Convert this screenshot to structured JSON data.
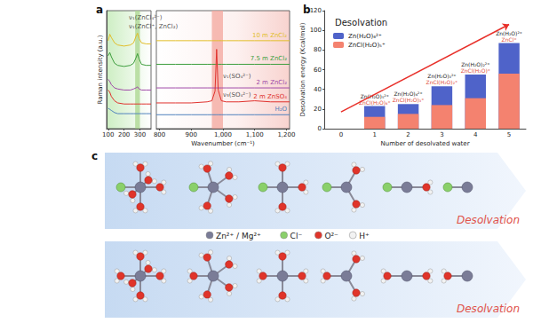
{
  "chart_data": [
    {
      "type": "line",
      "title": "a",
      "x_label": "Wavenumber (cm⁻¹)",
      "y_label": "Raman intensity (a.u.)",
      "x_segments": [
        {
          "xlim": [
            90,
            370
          ],
          "xticks": [
            100,
            200,
            300
          ]
        },
        {
          "xlim": [
            790,
            1210
          ],
          "xticks": [
            800,
            900,
            1000,
            1100,
            1200
          ]
        }
      ],
      "ylim": [
        0,
        11
      ],
      "tick_labels": "x",
      "grid": false,
      "x": [
        100,
        110,
        120,
        140,
        160,
        200,
        240,
        260,
        275,
        285,
        295,
        310,
        340,
        370,
        790,
        850,
        900,
        950,
        965,
        975,
        980,
        985,
        995,
        1010,
        1050,
        1100,
        1150,
        1210
      ],
      "series": [
        {
          "name": "10 m ZnCl₂",
          "color": "#e2be2a",
          "values": [
            8.2,
            8.8,
            8.5,
            8.0,
            7.8,
            7.7,
            7.8,
            8.0,
            8.6,
            8.9,
            8.4,
            8.0,
            7.9,
            7.9,
            8.2,
            8.2,
            8.2,
            8.2,
            8.2,
            8.2,
            8.2,
            8.2,
            8.2,
            8.2,
            8.2,
            8.2,
            8.2,
            8.2
          ]
        },
        {
          "name": "7.5 m ZnCl₂",
          "color": "#3e9e3e",
          "values": [
            6.8,
            7.1,
            6.7,
            6.1,
            5.9,
            5.8,
            5.9,
            6.1,
            6.6,
            7.0,
            6.5,
            6.0,
            5.9,
            5.9,
            6.0,
            6.0,
            6.0,
            6.0,
            6.0,
            6.0,
            6.0,
            6.0,
            6.0,
            6.0,
            6.0,
            6.0,
            6.0,
            6.0
          ]
        },
        {
          "name": "2 m ZnCl₂",
          "color": "#a04aa8",
          "values": [
            4.6,
            4.4,
            4.1,
            3.8,
            3.7,
            3.6,
            3.6,
            3.7,
            3.8,
            3.9,
            3.7,
            3.6,
            3.6,
            3.6,
            3.8,
            3.8,
            3.8,
            3.8,
            3.8,
            3.8,
            3.8,
            3.8,
            3.8,
            3.8,
            3.8,
            3.8,
            3.8,
            3.8
          ]
        },
        {
          "name": "2 m ZnSO₄",
          "color": "#e0322e",
          "values": [
            3.6,
            3.4,
            3.0,
            2.6,
            2.4,
            2.3,
            2.3,
            2.3,
            2.3,
            2.3,
            2.3,
            2.3,
            2.3,
            2.3,
            2.4,
            2.4,
            2.4,
            2.5,
            2.6,
            3.5,
            7.4,
            3.6,
            2.6,
            2.5,
            2.5,
            2.6,
            2.5,
            2.5
          ]
        },
        {
          "name": "H₂O",
          "color": "#4f81bd",
          "values": [
            1.9,
            1.8,
            1.7,
            1.5,
            1.4,
            1.4,
            1.4,
            1.4,
            1.4,
            1.4,
            1.4,
            1.4,
            1.4,
            1.4,
            1.3,
            1.3,
            1.3,
            1.3,
            1.3,
            1.3,
            1.3,
            1.3,
            1.3,
            1.3,
            1.3,
            1.3,
            1.3,
            1.3
          ]
        }
      ],
      "highlights": [
        {
          "from": 270,
          "to": 300,
          "color": "#a9d58e"
        },
        {
          "from": 965,
          "to": 1000,
          "color": "#f3a59c"
        }
      ],
      "annotations": [
        {
          "text": "ν₁(ZnCl₄²⁻)",
          "x": 230,
          "y": 10.3
        },
        {
          "text": "ν₁(ZnCl⁺, ZnCl₂)",
          "x": 230,
          "y": 9.55
        },
        {
          "text": "ν₁(SO₄²⁻)",
          "x": 1000,
          "y": 4.9
        },
        {
          "text": "ν₃(SO₄²⁻)",
          "x": 1000,
          "y": 3.15
        }
      ]
    },
    {
      "type": "bar",
      "title": "b",
      "x_label": "Number of desolvated water",
      "y_label": "Desolvation energy (Kcal/mol)",
      "text": "Desolvation",
      "categories": [
        "0",
        "1",
        "2",
        "3",
        "4",
        "5"
      ],
      "ylim": [
        0,
        120
      ],
      "yticks": [
        0,
        20,
        40,
        60,
        80,
        100,
        120
      ],
      "grid": false,
      "legend": "upper left",
      "series": [
        {
          "name": "Zn(H₂O)₆²⁺",
          "color": "#4f63c9",
          "values": [
            null,
            23,
            25,
            43,
            55,
            87
          ]
        },
        {
          "name": "ZnCl(H₂O)₅⁺",
          "color": "#f4826f",
          "values": [
            null,
            12,
            15,
            24,
            31,
            56
          ]
        }
      ],
      "bar_annotations": [
        {
          "category": "1",
          "lines": [
            "Zn(H₂O)₅²⁺",
            "ZnCl(H₂O)₄⁺"
          ]
        },
        {
          "category": "2",
          "lines": [
            "Zn(H₂O)₄²⁺",
            "ZnCl(H₂O)₃⁺"
          ]
        },
        {
          "category": "3",
          "lines": [
            "Zn(H₂O)₃²⁺",
            "ZnCl(H₂O)₂⁺"
          ]
        },
        {
          "category": "4",
          "lines": [
            "Zn(H₂O)₂²⁺",
            "ZnCl(H₂O)⁺"
          ]
        },
        {
          "category": "5",
          "lines": [
            "Zn(H₂O)²⁺",
            "ZnCl⁺"
          ]
        }
      ],
      "arrow": {
        "from": [
          0,
          17
        ],
        "to": [
          5,
          106
        ],
        "color": "#e8302a"
      }
    }
  ],
  "diagram": {
    "title": "c",
    "legend": [
      {
        "label": "Zn²⁺ / Mg²⁺",
        "color": "#7a7c97"
      },
      {
        "label": "Cl⁻",
        "color": "#8ad06a"
      },
      {
        "label": "O²⁻",
        "color": "#e0342a"
      },
      {
        "label": "H⁺",
        "color": "#f2f2f2"
      }
    ],
    "rows": [
      {
        "label": "Desolvation",
        "structures": [
          {
            "water": 5,
            "chloride": 1
          },
          {
            "water": 4,
            "chloride": 1
          },
          {
            "water": 3,
            "chloride": 1
          },
          {
            "water": 2,
            "chloride": 1
          },
          {
            "water": 1,
            "chloride": 1
          },
          {
            "water": 0,
            "chloride": 1
          }
        ]
      },
      {
        "label": "Desolvation",
        "structures": [
          {
            "water": 6,
            "chloride": 0
          },
          {
            "water": 5,
            "chloride": 0
          },
          {
            "water": 4,
            "chloride": 0
          },
          {
            "water": 3,
            "chloride": 0
          },
          {
            "water": 2,
            "chloride": 0
          },
          {
            "water": 1,
            "chloride": 0
          }
        ]
      }
    ]
  }
}
